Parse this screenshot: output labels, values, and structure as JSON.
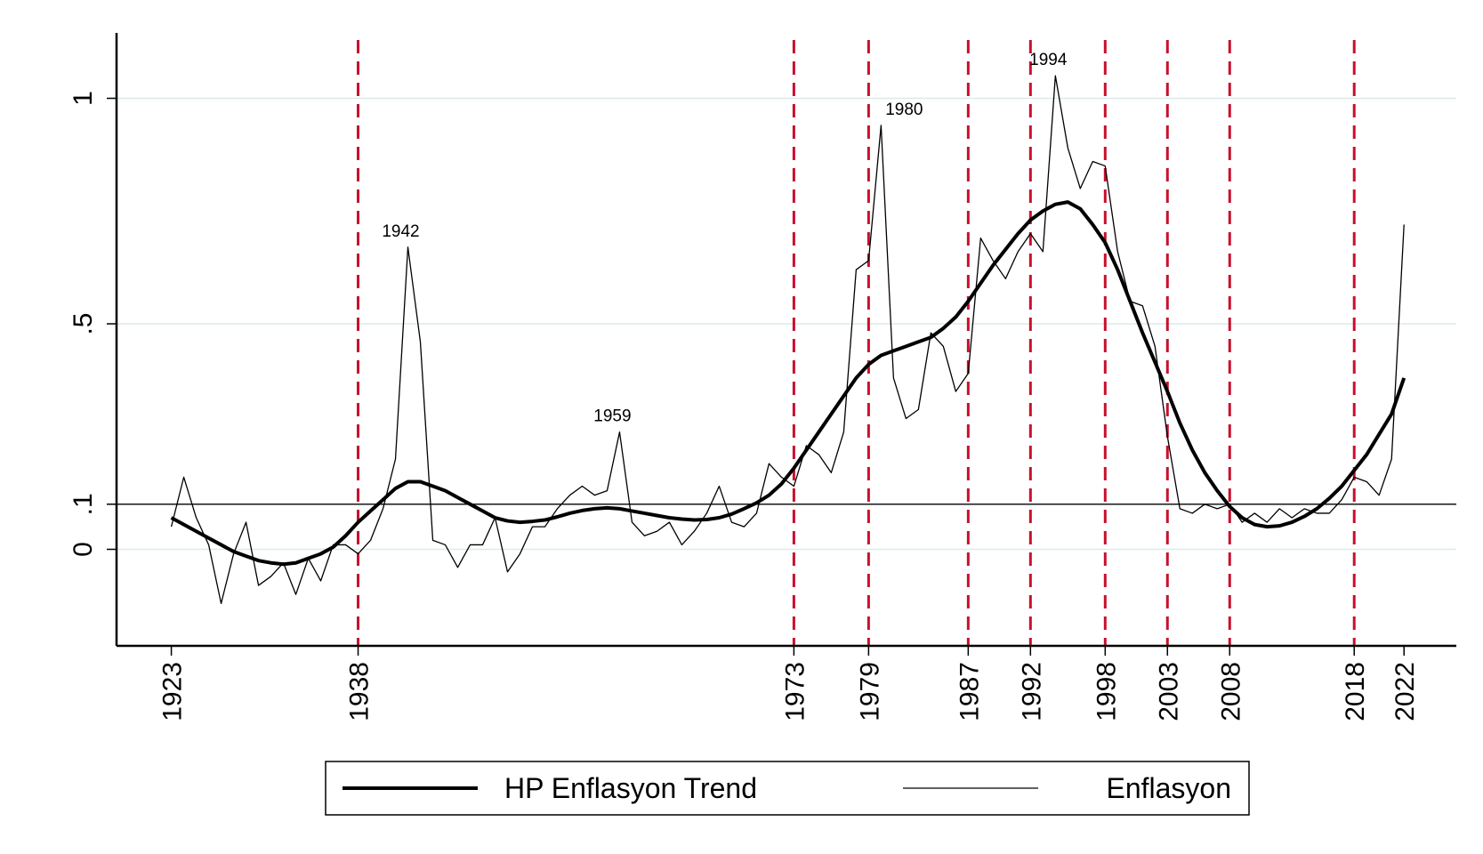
{
  "chart_data": {
    "type": "line",
    "x": [
      1923,
      1924,
      1925,
      1926,
      1927,
      1928,
      1929,
      1930,
      1931,
      1932,
      1933,
      1934,
      1935,
      1936,
      1937,
      1938,
      1939,
      1940,
      1941,
      1942,
      1943,
      1944,
      1945,
      1946,
      1947,
      1948,
      1949,
      1950,
      1951,
      1952,
      1953,
      1954,
      1955,
      1956,
      1957,
      1958,
      1959,
      1960,
      1961,
      1962,
      1963,
      1964,
      1965,
      1966,
      1967,
      1968,
      1969,
      1970,
      1971,
      1972,
      1973,
      1974,
      1975,
      1976,
      1977,
      1978,
      1979,
      1980,
      1981,
      1982,
      1983,
      1984,
      1985,
      1986,
      1987,
      1988,
      1989,
      1990,
      1991,
      1992,
      1993,
      1994,
      1995,
      1996,
      1997,
      1998,
      1999,
      2000,
      2001,
      2002,
      2003,
      2004,
      2005,
      2006,
      2007,
      2008,
      2009,
      2010,
      2011,
      2012,
      2013,
      2014,
      2015,
      2016,
      2017,
      2018,
      2019,
      2020,
      2021,
      2022
    ],
    "series": [
      {
        "name": "HP Enflasyon Trend",
        "color": "#000000",
        "values": [
          0.07,
          0.055,
          0.04,
          0.025,
          0.01,
          -0.005,
          -0.015,
          -0.025,
          -0.03,
          -0.033,
          -0.03,
          -0.02,
          -0.01,
          0.005,
          0.03,
          0.06,
          0.085,
          0.11,
          0.135,
          0.15,
          0.15,
          0.14,
          0.13,
          0.115,
          0.1,
          0.085,
          0.07,
          0.063,
          0.06,
          0.062,
          0.065,
          0.072,
          0.08,
          0.086,
          0.09,
          0.092,
          0.09,
          0.085,
          0.08,
          0.075,
          0.07,
          0.067,
          0.065,
          0.066,
          0.07,
          0.078,
          0.09,
          0.103,
          0.12,
          0.145,
          0.18,
          0.22,
          0.26,
          0.3,
          0.34,
          0.38,
          0.41,
          0.43,
          0.44,
          0.45,
          0.46,
          0.47,
          0.49,
          0.515,
          0.55,
          0.59,
          0.63,
          0.665,
          0.7,
          0.73,
          0.75,
          0.765,
          0.77,
          0.755,
          0.72,
          0.68,
          0.62,
          0.55,
          0.48,
          0.415,
          0.35,
          0.28,
          0.22,
          0.17,
          0.13,
          0.095,
          0.07,
          0.055,
          0.05,
          0.052,
          0.06,
          0.073,
          0.09,
          0.113,
          0.14,
          0.175,
          0.21,
          0.255,
          0.3,
          0.38
        ]
      },
      {
        "name": "Enflasyon",
        "color": "#000000",
        "values": [
          0.05,
          0.16,
          0.07,
          0.01,
          -0.12,
          -0.01,
          0.06,
          -0.08,
          -0.06,
          -0.03,
          -0.1,
          -0.02,
          -0.07,
          0.01,
          0.01,
          -0.01,
          0.02,
          0.09,
          0.2,
          0.67,
          0.46,
          0.02,
          0.01,
          -0.04,
          0.01,
          0.01,
          0.07,
          -0.05,
          -0.01,
          0.05,
          0.05,
          0.09,
          0.12,
          0.14,
          0.12,
          0.13,
          0.26,
          0.06,
          0.03,
          0.04,
          0.06,
          0.01,
          0.04,
          0.08,
          0.14,
          0.06,
          0.05,
          0.08,
          0.19,
          0.16,
          0.14,
          0.23,
          0.21,
          0.17,
          0.26,
          0.62,
          0.64,
          0.94,
          0.38,
          0.29,
          0.31,
          0.48,
          0.45,
          0.35,
          0.39,
          0.69,
          0.64,
          0.6,
          0.66,
          0.7,
          0.66,
          1.05,
          0.89,
          0.8,
          0.86,
          0.85,
          0.66,
          0.55,
          0.54,
          0.45,
          0.25,
          0.09,
          0.08,
          0.1,
          0.09,
          0.1,
          0.06,
          0.08,
          0.06,
          0.09,
          0.07,
          0.09,
          0.08,
          0.08,
          0.11,
          0.16,
          0.15,
          0.12,
          0.2,
          0.72
        ]
      }
    ],
    "xlim": [
      1918.6,
      2026.2
    ],
    "xticks": [
      1923,
      1938,
      1973,
      1979,
      1987,
      1992,
      1998,
      2003,
      2008,
      2018,
      2022
    ],
    "ylim": [
      -0.214,
      1.145
    ],
    "yticks": [
      0,
      {
        "value": 0.1,
        "label": ".1"
      },
      {
        "value": 0.5,
        "label": ".5"
      },
      1
    ],
    "grid": true,
    "grid_color": "#dde9e9",
    "hline": 0.1,
    "vlines": [
      1938,
      1973,
      1979,
      1987,
      1992,
      1998,
      2003,
      2008,
      2018
    ],
    "vline_color": "#c8102e",
    "annotations": [
      1942,
      1959,
      1980,
      1994
    ],
    "legend": "bottom"
  }
}
